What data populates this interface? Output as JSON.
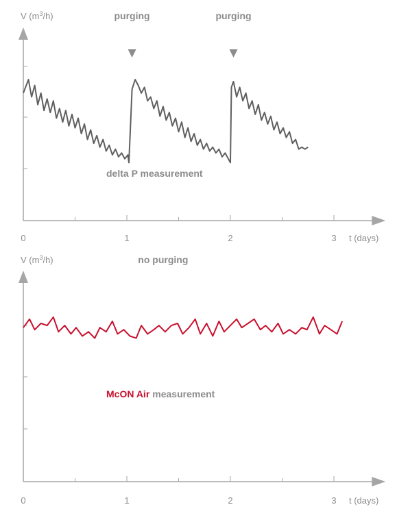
{
  "colors": {
    "axis": "#a6a6a6",
    "text": "#8c8c8c",
    "series_gray": "#5f5f5f",
    "brand_red": "#c8102e"
  },
  "chart_data": [
    {
      "type": "line",
      "title": "",
      "ylabel_main": "V (m",
      "ylabel_sup": "3",
      "ylabel_tail": "/h)",
      "xlabel": "t (days)",
      "xticks": [
        "0",
        "1",
        "2",
        "3"
      ],
      "xlim": [
        0,
        3.3
      ],
      "ylim": [
        0,
        1
      ],
      "annotations": [
        {
          "text": "purging",
          "x": 1.05,
          "marker": "down-triangle"
        },
        {
          "text": "purging",
          "x": 2.03,
          "marker": "down-triangle"
        }
      ],
      "label": "delta P measurement",
      "series": [
        {
          "color": "#5f5f5f",
          "x": [
            0.0,
            0.05,
            0.08,
            0.11,
            0.14,
            0.17,
            0.2,
            0.23,
            0.26,
            0.29,
            0.32,
            0.35,
            0.38,
            0.41,
            0.44,
            0.47,
            0.5,
            0.53,
            0.56,
            0.59,
            0.62,
            0.65,
            0.68,
            0.71,
            0.74,
            0.77,
            0.8,
            0.83,
            0.86,
            0.89,
            0.92,
            0.95,
            0.98,
            1.01,
            1.02,
            1.05,
            1.08,
            1.11,
            1.14,
            1.17,
            1.2,
            1.23,
            1.26,
            1.29,
            1.32,
            1.35,
            1.38,
            1.41,
            1.44,
            1.47,
            1.5,
            1.53,
            1.56,
            1.59,
            1.62,
            1.65,
            1.68,
            1.71,
            1.74,
            1.77,
            1.8,
            1.83,
            1.86,
            1.89,
            1.92,
            1.95,
            1.98,
            2.0,
            2.01,
            2.03,
            2.06,
            2.09,
            2.12,
            2.15,
            2.18,
            2.21,
            2.24,
            2.27,
            2.3,
            2.33,
            2.36,
            2.39,
            2.42,
            2.45,
            2.48,
            2.51,
            2.54,
            2.57,
            2.6,
            2.63,
            2.66,
            2.69,
            2.72,
            2.75
          ],
          "values": [
            0.66,
            0.73,
            0.64,
            0.7,
            0.6,
            0.66,
            0.57,
            0.63,
            0.56,
            0.62,
            0.53,
            0.58,
            0.51,
            0.57,
            0.49,
            0.55,
            0.48,
            0.53,
            0.45,
            0.5,
            0.42,
            0.47,
            0.4,
            0.44,
            0.38,
            0.42,
            0.36,
            0.39,
            0.34,
            0.37,
            0.33,
            0.35,
            0.32,
            0.34,
            0.3,
            0.68,
            0.73,
            0.7,
            0.66,
            0.69,
            0.62,
            0.64,
            0.58,
            0.62,
            0.54,
            0.59,
            0.52,
            0.56,
            0.49,
            0.53,
            0.46,
            0.51,
            0.43,
            0.48,
            0.41,
            0.45,
            0.39,
            0.42,
            0.37,
            0.4,
            0.36,
            0.38,
            0.35,
            0.37,
            0.33,
            0.35,
            0.32,
            0.3,
            0.69,
            0.72,
            0.64,
            0.69,
            0.62,
            0.66,
            0.58,
            0.62,
            0.55,
            0.6,
            0.52,
            0.56,
            0.5,
            0.54,
            0.47,
            0.51,
            0.45,
            0.48,
            0.43,
            0.46,
            0.4,
            0.42,
            0.37,
            0.38,
            0.37,
            0.38
          ]
        }
      ]
    },
    {
      "type": "line",
      "title": "",
      "ylabel_main": "V (m",
      "ylabel_sup": "3",
      "ylabel_tail": "/h)",
      "xlabel": "t (days)",
      "xticks": [
        "0",
        "1",
        "2",
        "3"
      ],
      "xlim": [
        0,
        3.3
      ],
      "ylim": [
        0,
        1
      ],
      "annotations": [
        {
          "text": "no purging",
          "x": 1.35,
          "marker": "none"
        }
      ],
      "label_brand": "McON Air",
      "label_tail": "measurement",
      "series": [
        {
          "color": "#c8102e",
          "x": [
            0.0,
            0.06,
            0.11,
            0.17,
            0.23,
            0.29,
            0.34,
            0.4,
            0.46,
            0.51,
            0.57,
            0.63,
            0.69,
            0.74,
            0.8,
            0.86,
            0.91,
            0.97,
            1.03,
            1.09,
            1.14,
            1.2,
            1.26,
            1.31,
            1.37,
            1.43,
            1.49,
            1.54,
            1.6,
            1.66,
            1.71,
            1.77,
            1.83,
            1.89,
            1.94,
            2.0,
            2.06,
            2.11,
            2.17,
            2.23,
            2.29,
            2.34,
            2.4,
            2.46,
            2.51,
            2.57,
            2.63,
            2.69,
            2.74,
            2.8,
            2.86,
            2.91,
            2.97,
            3.03,
            3.08
          ],
          "values": [
            0.73,
            0.77,
            0.72,
            0.75,
            0.74,
            0.78,
            0.71,
            0.74,
            0.7,
            0.73,
            0.69,
            0.71,
            0.68,
            0.73,
            0.71,
            0.76,
            0.7,
            0.72,
            0.69,
            0.68,
            0.74,
            0.7,
            0.72,
            0.74,
            0.71,
            0.74,
            0.75,
            0.7,
            0.73,
            0.77,
            0.7,
            0.75,
            0.69,
            0.76,
            0.71,
            0.74,
            0.77,
            0.73,
            0.75,
            0.77,
            0.72,
            0.74,
            0.71,
            0.75,
            0.7,
            0.72,
            0.7,
            0.73,
            0.72,
            0.78,
            0.7,
            0.74,
            0.72,
            0.7,
            0.76
          ]
        }
      ]
    }
  ]
}
